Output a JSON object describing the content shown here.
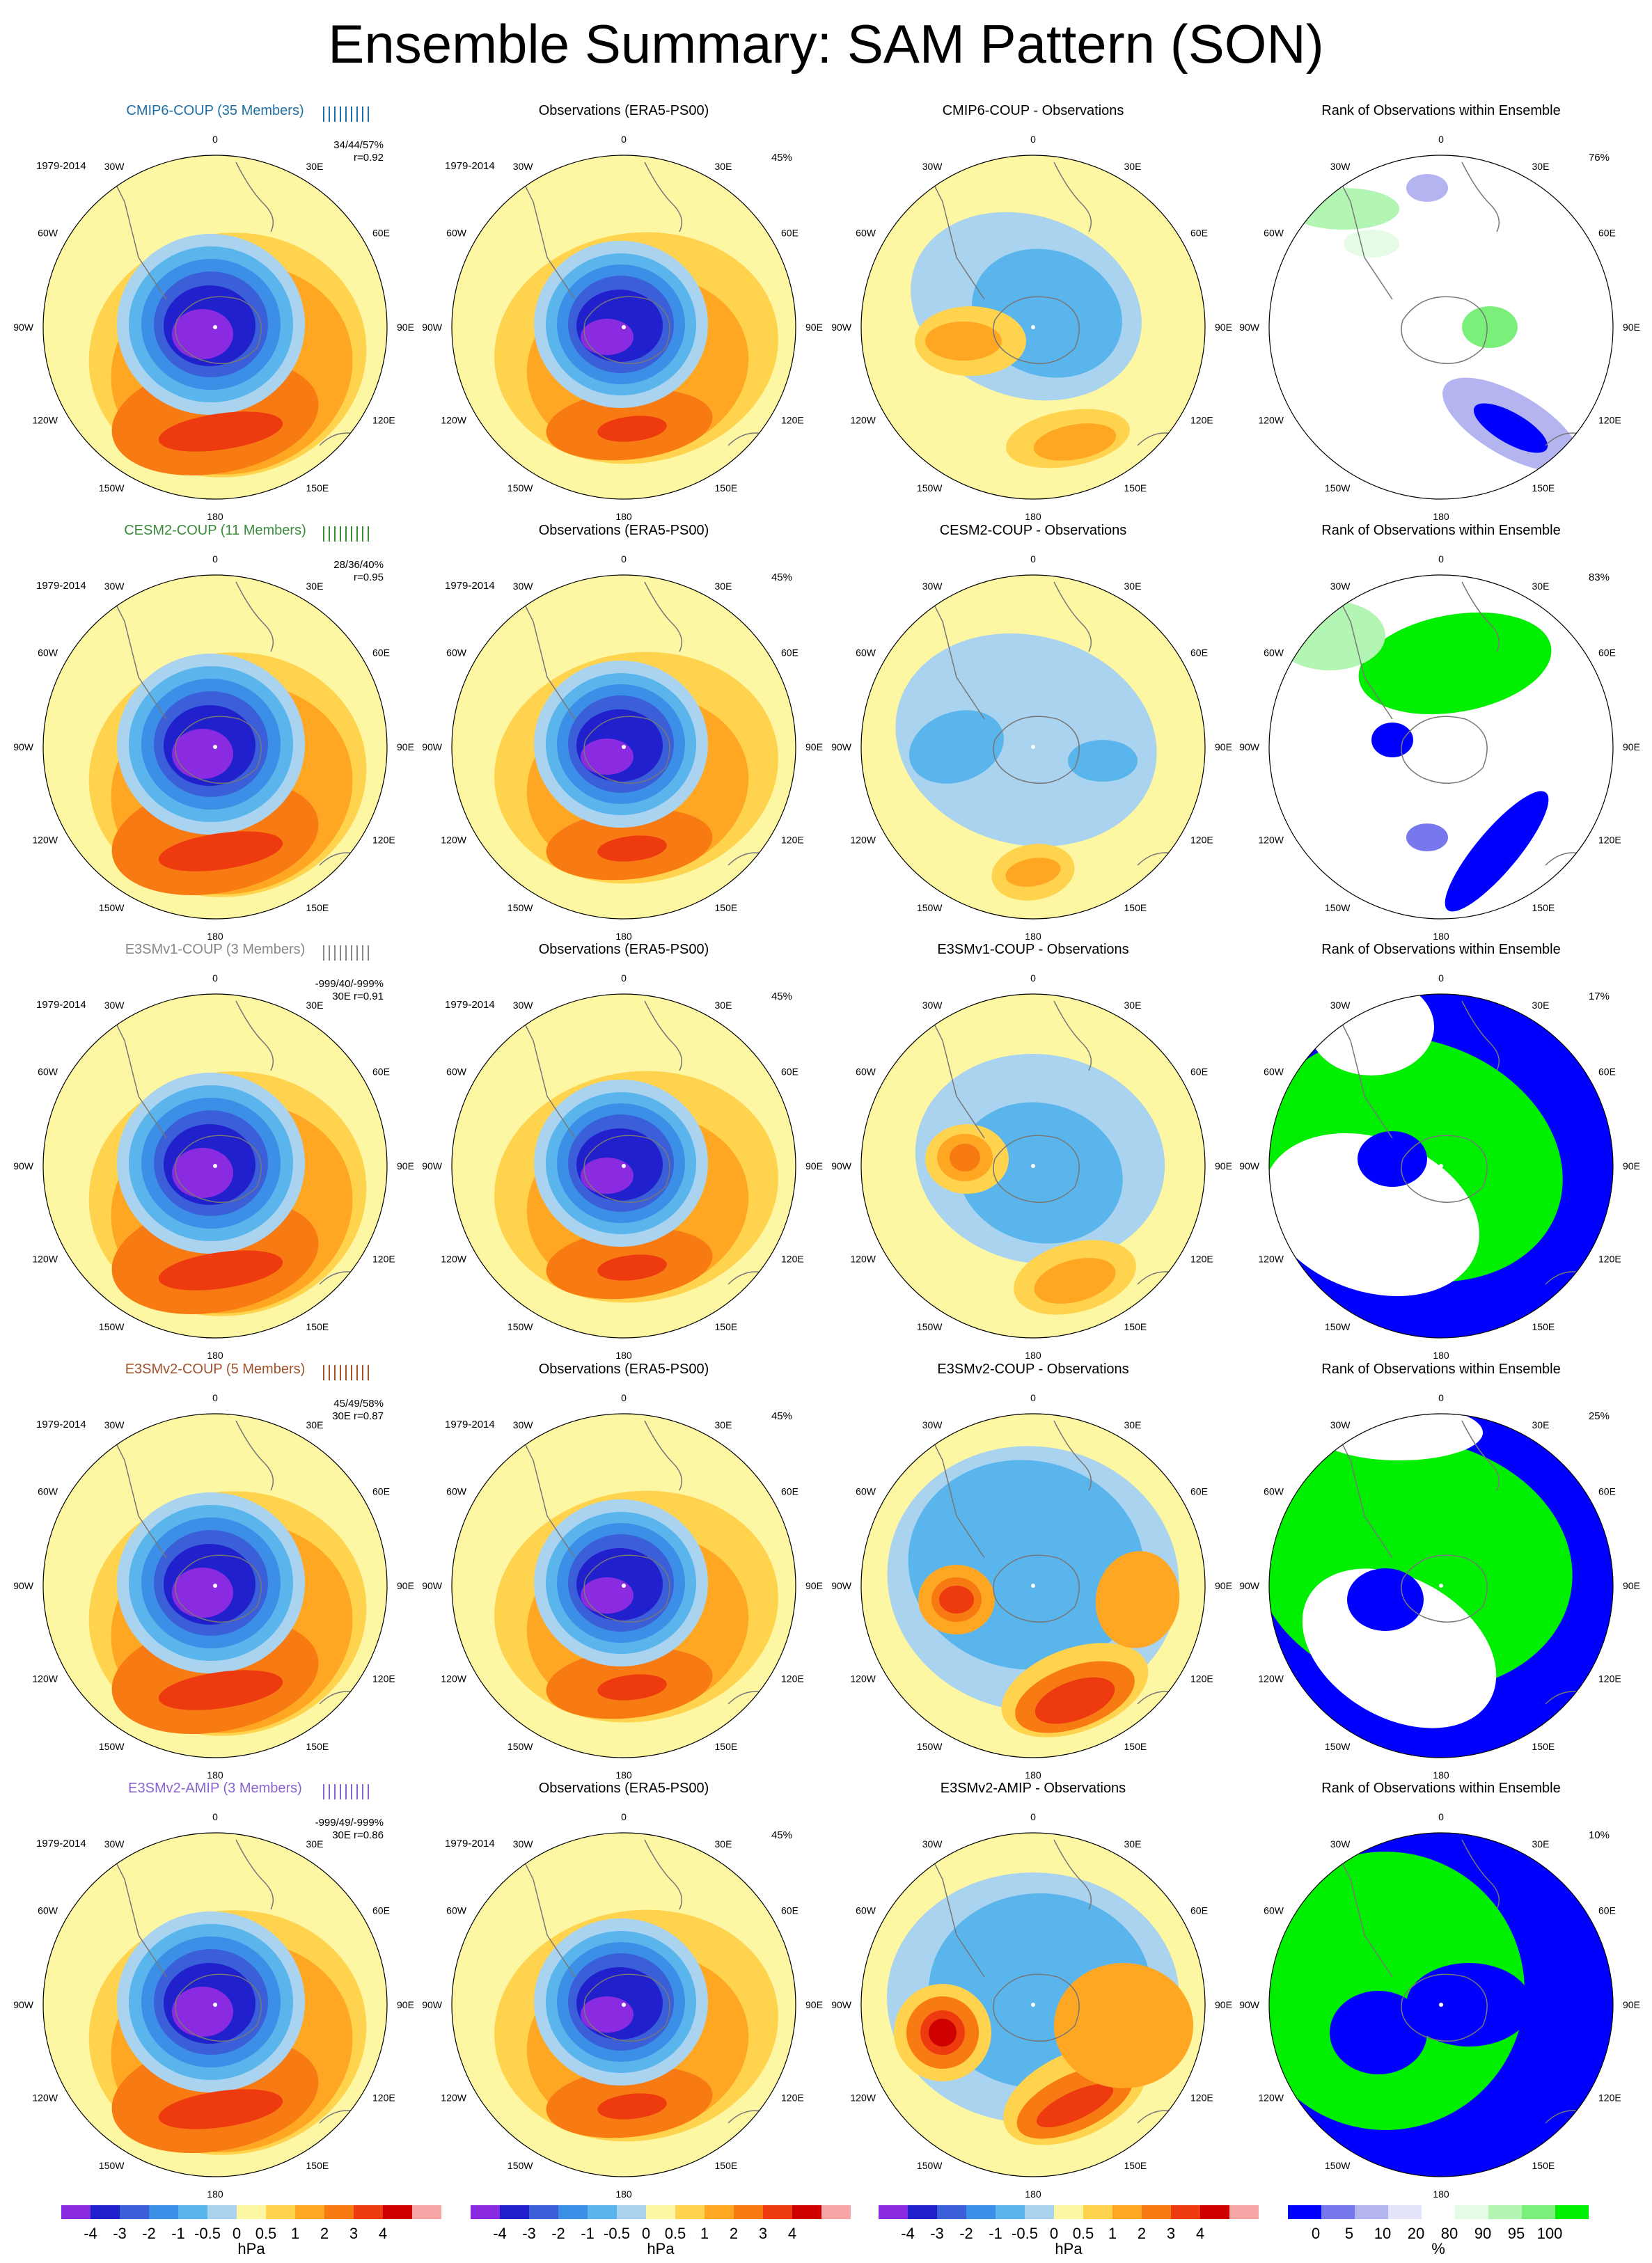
{
  "title": "Ensemble Summary: SAM Pattern (SON)",
  "colors": {
    "diff_scale": [
      "#8a2be2",
      "#2020cc",
      "#3a5fd9",
      "#3c8fe6",
      "#5ab5ec",
      "#a9d3ee",
      "#fdf6a2",
      "#ffd34d",
      "#ffa722",
      "#f77a13",
      "#ee3a0f",
      "#cf0000",
      "#f7a6a6"
    ],
    "rank_scale": [
      "#0000ff",
      "#7777ee",
      "#b4b4f0",
      "#e4e4fa",
      "#ffffff",
      "#e6fbe6",
      "#b3f5b3",
      "#7af07a",
      "#00ee00"
    ],
    "land_outline": "#777777",
    "title_colors": {
      "CMIP6-COUP": "#1d6fa5",
      "CESM2-COUP": "#3a8a3a",
      "E3SMv1-COUP": "#888888",
      "E3SMv2-COUP": "#a0522d",
      "E3SMv2-AMIP": "#8a63d2"
    }
  },
  "lon_labels": {
    "top": "0",
    "tr": "30E",
    "tl": "30W",
    "rt": "60E",
    "lt": "60W",
    "r": "90E",
    "l": "90W",
    "rb": "120E",
    "lb": "120W",
    "br": "150E",
    "bl": "150W",
    "bottom": "180"
  },
  "rows": [
    {
      "model_title": "CMIP6-COUP (35 Members)",
      "model_period": "1979-2014",
      "model_stats": "34/44/57%",
      "model_corr": "r=0.92",
      "obs_title": "Observations (ERA5-PS00)",
      "obs_period": "1979-2014",
      "obs_pct": "45%",
      "diff_title": "CMIP6-COUP - Observations",
      "rank_title": "Rank of Observations within Ensemble",
      "rank_pct": "76%"
    },
    {
      "model_title": "CESM2-COUP (11 Members)",
      "model_period": "1979-2014",
      "model_stats": "28/36/40%",
      "model_corr": "r=0.95",
      "obs_title": "Observations (ERA5-PS00)",
      "obs_period": "1979-2014",
      "obs_pct": "45%",
      "diff_title": "CESM2-COUP - Observations",
      "rank_title": "Rank of Observations within Ensemble",
      "rank_pct": "83%"
    },
    {
      "model_title": "E3SMv1-COUP (3 Members)",
      "model_period": "1979-2014",
      "model_stats": "-999/40/-999%",
      "model_corr": "30E r=0.91",
      "obs_title": "Observations (ERA5-PS00)",
      "obs_period": "1979-2014",
      "obs_pct": "45%",
      "diff_title": "E3SMv1-COUP - Observations",
      "rank_title": "Rank of Observations within Ensemble",
      "rank_pct": "17%"
    },
    {
      "model_title": "E3SMv2-COUP (5 Members)",
      "model_period": "1979-2014",
      "model_stats": "45/49/58%",
      "model_corr": "30E r=0.87",
      "obs_title": "Observations (ERA5-PS00)",
      "obs_period": "1979-2014",
      "obs_pct": "45%",
      "diff_title": "E3SMv2-COUP - Observations",
      "rank_title": "Rank of Observations within Ensemble",
      "rank_pct": "25%"
    },
    {
      "model_title": "E3SMv2-AMIP (3 Members)",
      "model_period": "1979-2014",
      "model_stats": "-999/49/-999%",
      "model_corr": "30E r=0.86",
      "obs_title": "Observations (ERA5-PS00)",
      "obs_period": "1979-2014",
      "obs_pct": "45%",
      "diff_title": "E3SMv2-AMIP - Observations",
      "rank_title": "Rank of Observations within Ensemble",
      "rank_pct": "10%"
    }
  ],
  "colorbars": {
    "hpa_labels": [
      "-4",
      "-3",
      "-2",
      "-1",
      "-0.5",
      "0",
      "0.5",
      "1",
      "2",
      "3",
      "4"
    ],
    "hpa_unit": "hPa",
    "rank_labels": [
      "0",
      "5",
      "10",
      "20",
      "80",
      "90",
      "95",
      "100"
    ],
    "rank_unit": "%"
  },
  "chart_data": [
    {
      "type": "heatmap",
      "title": "Ensemble Summary: SAM Pattern (SON)",
      "panels": "5 rows x 4 columns of south-polar stereographic maps",
      "columns": [
        "model ensemble mean SAM pattern (hPa)",
        "observations (ERA5-PS00) (hPa)",
        "model - observations (hPa)",
        "rank of observations within ensemble (%)"
      ],
      "contour_levels_hpa": [
        -4,
        -3,
        -2,
        -1,
        -0.5,
        0,
        0.5,
        1,
        2,
        3,
        4
      ],
      "rank_levels_pct": [
        0,
        5,
        10,
        20,
        80,
        90,
        95,
        100
      ]
    }
  ]
}
